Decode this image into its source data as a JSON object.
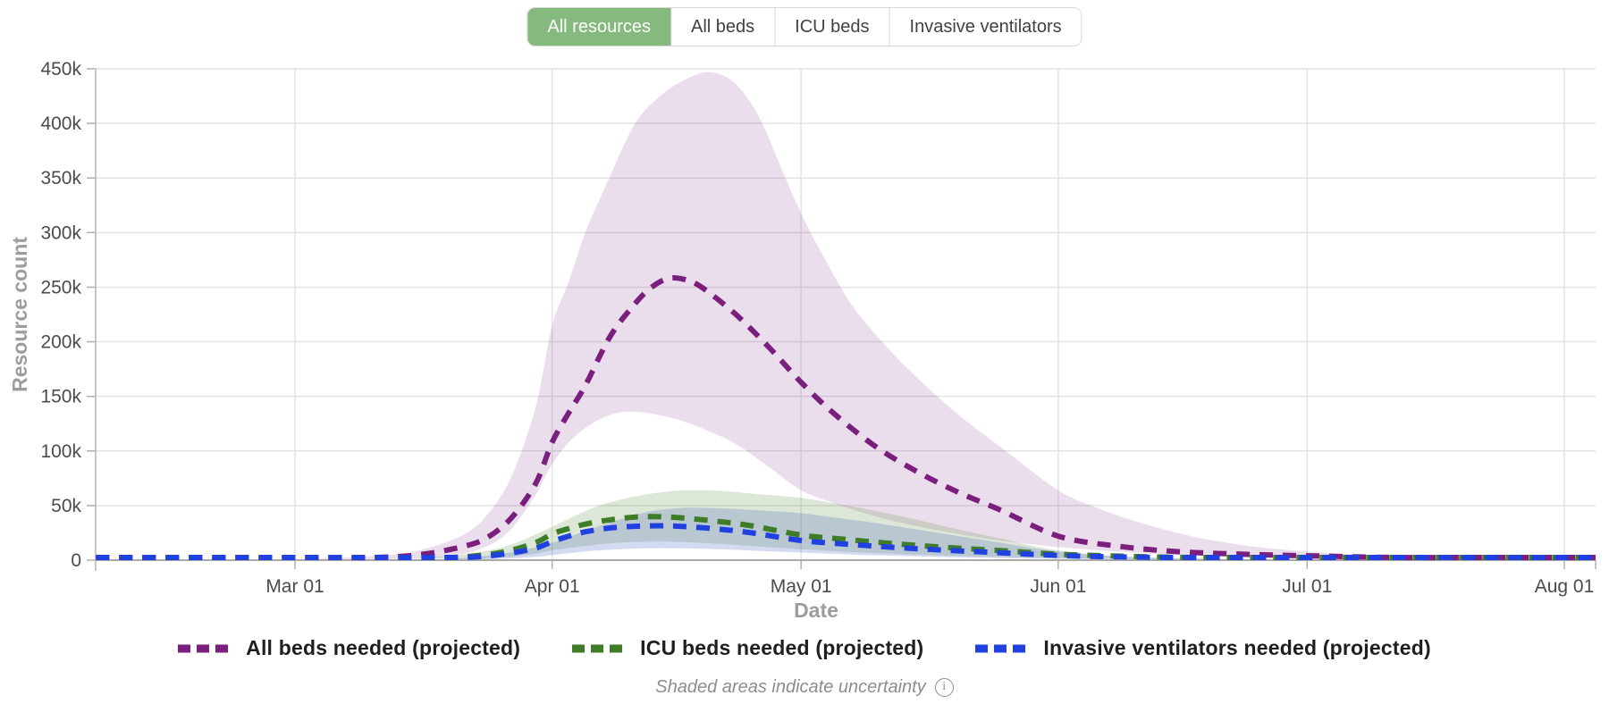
{
  "tab_bar": {
    "selected_bg": "#84ba7e",
    "tabs": [
      {
        "label": "All resources",
        "selected": true
      },
      {
        "label": "All beds",
        "selected": false
      },
      {
        "label": "ICU beds",
        "selected": false
      },
      {
        "label": "Invasive ventilators",
        "selected": false
      }
    ]
  },
  "chart_data": {
    "type": "line",
    "title": "",
    "xlabel": "Date",
    "ylabel": "Resource count",
    "ylim": [
      0,
      450000
    ],
    "ytick_step": 50000,
    "ytick_labels": [
      "0",
      "50k",
      "100k",
      "150k",
      "200k",
      "250k",
      "300k",
      "350k",
      "400k",
      "450k"
    ],
    "grid": true,
    "legend_position": "bottom",
    "x_unit": "day index (day 1 = Feb 06 2020, chart spans to early Aug 2020)",
    "values_unit": "thousands of resources",
    "xticks": [
      {
        "day": 25,
        "label": "Mar 01"
      },
      {
        "day": 56,
        "label": "Apr 01"
      },
      {
        "day": 86,
        "label": "May 01"
      },
      {
        "day": 117,
        "label": "Jun 01"
      },
      {
        "day": 147,
        "label": "Jul 01"
      },
      {
        "day": 178,
        "label": "Aug 01"
      }
    ],
    "x_domain_days": [
      1,
      182
    ],
    "series": [
      {
        "name": "All beds needed (projected)",
        "color": "#7a1f7d",
        "band_color": "rgba(122,31,125,0.15)",
        "style": "dashed",
        "points": [
          [
            1,
            0.3
          ],
          [
            10,
            0.4
          ],
          [
            20,
            0.6
          ],
          [
            25,
            0.8
          ],
          [
            30,
            1.2
          ],
          [
            35,
            2.5
          ],
          [
            40,
            5
          ],
          [
            45,
            12
          ],
          [
            48,
            20
          ],
          [
            51,
            38
          ],
          [
            54,
            70
          ],
          [
            56,
            108
          ],
          [
            58,
            135
          ],
          [
            60,
            160
          ],
          [
            63,
            205
          ],
          [
            66,
            235
          ],
          [
            68,
            250
          ],
          [
            70,
            258
          ],
          [
            72,
            257
          ],
          [
            74,
            250
          ],
          [
            78,
            226
          ],
          [
            82,
            196
          ],
          [
            86,
            163
          ],
          [
            90,
            134
          ],
          [
            95,
            104
          ],
          [
            100,
            81
          ],
          [
            105,
            62
          ],
          [
            110,
            46
          ],
          [
            117,
            22
          ],
          [
            124,
            13
          ],
          [
            131,
            8
          ],
          [
            139,
            5.5
          ],
          [
            147,
            4
          ],
          [
            157,
            2.5
          ],
          [
            167,
            1.5
          ],
          [
            178,
            1
          ],
          [
            182,
            0.9
          ]
        ],
        "upper": [
          [
            25,
            1
          ],
          [
            35,
            4
          ],
          [
            40,
            9
          ],
          [
            45,
            22
          ],
          [
            48,
            40
          ],
          [
            51,
            75
          ],
          [
            54,
            140
          ],
          [
            56,
            215
          ],
          [
            58,
            255
          ],
          [
            60,
            300
          ],
          [
            63,
            352
          ],
          [
            66,
            400
          ],
          [
            69,
            425
          ],
          [
            72,
            440
          ],
          [
            75,
            447
          ],
          [
            78,
            437
          ],
          [
            81,
            405
          ],
          [
            84,
            352
          ],
          [
            86,
            318
          ],
          [
            88,
            288
          ],
          [
            92,
            235
          ],
          [
            96,
            198
          ],
          [
            100,
            167
          ],
          [
            105,
            133
          ],
          [
            110,
            104
          ],
          [
            117,
            64
          ],
          [
            122,
            47
          ],
          [
            127,
            34
          ],
          [
            133,
            22
          ],
          [
            140,
            13
          ],
          [
            147,
            8
          ],
          [
            154,
            5
          ],
          [
            162,
            3
          ],
          [
            170,
            1.8
          ],
          [
            178,
            1.2
          ],
          [
            182,
            1
          ]
        ],
        "lower": [
          [
            35,
            0.5
          ],
          [
            40,
            1.5
          ],
          [
            44,
            4
          ],
          [
            48,
            12
          ],
          [
            51,
            28
          ],
          [
            54,
            60
          ],
          [
            56,
            88
          ],
          [
            58,
            108
          ],
          [
            60,
            121
          ],
          [
            62,
            130
          ],
          [
            64,
            135
          ],
          [
            66,
            136
          ],
          [
            68,
            134
          ],
          [
            71,
            129
          ],
          [
            74,
            121
          ],
          [
            78,
            107
          ],
          [
            82,
            86
          ],
          [
            86,
            64
          ],
          [
            90,
            52
          ],
          [
            95,
            40
          ],
          [
            100,
            31
          ],
          [
            105,
            24
          ],
          [
            110,
            18
          ],
          [
            117,
            12
          ],
          [
            124,
            8
          ],
          [
            131,
            5
          ],
          [
            139,
            3
          ],
          [
            147,
            1.8
          ],
          [
            157,
            1
          ],
          [
            167,
            0.6
          ],
          [
            178,
            0.4
          ],
          [
            182,
            0.4
          ]
        ]
      },
      {
        "name": "ICU beds needed (projected)",
        "color": "#3f7c28",
        "band_color": "rgba(85,135,55,0.20)",
        "style": "dashed",
        "points": [
          [
            1,
            0.15
          ],
          [
            25,
            0.2
          ],
          [
            35,
            0.5
          ],
          [
            40,
            1
          ],
          [
            44,
            2.2
          ],
          [
            48,
            5
          ],
          [
            51,
            9
          ],
          [
            54,
            16
          ],
          [
            56,
            24
          ],
          [
            58,
            29
          ],
          [
            60,
            33
          ],
          [
            63,
            37
          ],
          [
            66,
            39.5
          ],
          [
            69,
            39.8
          ],
          [
            72,
            38.5
          ],
          [
            76,
            35.5
          ],
          [
            80,
            31.5
          ],
          [
            86,
            23
          ],
          [
            90,
            20
          ],
          [
            95,
            16.5
          ],
          [
            100,
            13.5
          ],
          [
            105,
            11
          ],
          [
            110,
            8.8
          ],
          [
            117,
            5.5
          ],
          [
            124,
            3.8
          ],
          [
            131,
            2.6
          ],
          [
            139,
            1.8
          ],
          [
            147,
            1.3
          ],
          [
            157,
            0.9
          ],
          [
            167,
            0.7
          ],
          [
            178,
            0.6
          ],
          [
            182,
            0.6
          ]
        ],
        "upper": [
          [
            40,
            2
          ],
          [
            45,
            5
          ],
          [
            49,
            10
          ],
          [
            52,
            17
          ],
          [
            55,
            27
          ],
          [
            58,
            38
          ],
          [
            61,
            48
          ],
          [
            64,
            55
          ],
          [
            68,
            61
          ],
          [
            72,
            64
          ],
          [
            76,
            63.5
          ],
          [
            80,
            61
          ],
          [
            86,
            57
          ],
          [
            90,
            52
          ],
          [
            95,
            45
          ],
          [
            100,
            37
          ],
          [
            105,
            28
          ],
          [
            110,
            20
          ],
          [
            114,
            13
          ],
          [
            117,
            9
          ],
          [
            121,
            5.5
          ],
          [
            126,
            3
          ],
          [
            132,
            1.8
          ],
          [
            140,
            1
          ],
          [
            147,
            0.8
          ]
        ],
        "lower": [
          [
            45,
            0.8
          ],
          [
            50,
            2.5
          ],
          [
            54,
            6
          ],
          [
            56,
            9
          ],
          [
            60,
            13
          ],
          [
            64,
            16
          ],
          [
            68,
            17
          ],
          [
            72,
            16.5
          ],
          [
            76,
            15
          ],
          [
            80,
            13
          ],
          [
            86,
            10
          ],
          [
            92,
            7.5
          ],
          [
            100,
            5
          ],
          [
            107,
            3.4
          ],
          [
            114,
            2.3
          ],
          [
            121,
            1.5
          ],
          [
            131,
            0.9
          ],
          [
            140,
            0.6
          ],
          [
            147,
            0.5
          ]
        ]
      },
      {
        "name": "Invasive ventilators needed (projected)",
        "color": "#2140e0",
        "band_color": "rgba(60,85,190,0.22)",
        "style": "dashed",
        "points": [
          [
            1,
            0.25
          ],
          [
            25,
            0.3
          ],
          [
            38,
            0.6
          ],
          [
            43,
            1.3
          ],
          [
            47,
            3
          ],
          [
            51,
            6.5
          ],
          [
            54,
            11
          ],
          [
            56,
            17
          ],
          [
            58,
            22
          ],
          [
            60,
            26
          ],
          [
            63,
            29.5
          ],
          [
            66,
            31
          ],
          [
            69,
            31.5
          ],
          [
            72,
            30.8
          ],
          [
            76,
            28.5
          ],
          [
            80,
            25
          ],
          [
            86,
            18
          ],
          [
            90,
            15.5
          ],
          [
            95,
            12.8
          ],
          [
            100,
            10.5
          ],
          [
            105,
            8.5
          ],
          [
            110,
            6.8
          ],
          [
            117,
            4.3
          ],
          [
            124,
            3
          ],
          [
            131,
            2.1
          ],
          [
            139,
            1.5
          ],
          [
            147,
            1.1
          ],
          [
            157,
            0.8
          ],
          [
            167,
            0.6
          ],
          [
            178,
            0.5
          ],
          [
            182,
            0.5
          ]
        ],
        "upper": [
          [
            42,
            1
          ],
          [
            46,
            2.5
          ],
          [
            50,
            6
          ],
          [
            53,
            10
          ],
          [
            56,
            16
          ],
          [
            59,
            24
          ],
          [
            62,
            32
          ],
          [
            65,
            39
          ],
          [
            68,
            45
          ],
          [
            72,
            48
          ],
          [
            76,
            47.5
          ],
          [
            80,
            46
          ],
          [
            86,
            43
          ],
          [
            90,
            39
          ],
          [
            95,
            34
          ],
          [
            100,
            28
          ],
          [
            105,
            22
          ],
          [
            110,
            16
          ],
          [
            114,
            11
          ],
          [
            117,
            8
          ],
          [
            121,
            5
          ],
          [
            126,
            2.8
          ],
          [
            132,
            1.5
          ],
          [
            140,
            0.9
          ],
          [
            147,
            0.7
          ]
        ],
        "lower": [
          [
            46,
            0.4
          ],
          [
            50,
            1.2
          ],
          [
            54,
            3
          ],
          [
            57,
            5.5
          ],
          [
            60,
            8
          ],
          [
            64,
            10
          ],
          [
            68,
            11
          ],
          [
            72,
            10.8
          ],
          [
            76,
            10
          ],
          [
            80,
            8.8
          ],
          [
            86,
            7
          ],
          [
            92,
            5.2
          ],
          [
            100,
            3.5
          ],
          [
            107,
            2.3
          ],
          [
            114,
            1.5
          ],
          [
            121,
            1
          ],
          [
            131,
            0.6
          ],
          [
            140,
            0.4
          ],
          [
            147,
            0.3
          ]
        ]
      }
    ]
  },
  "footer": {
    "note": "Shaded areas indicate uncertainty",
    "icon": "info-circle",
    "icon_glyph": "i"
  }
}
